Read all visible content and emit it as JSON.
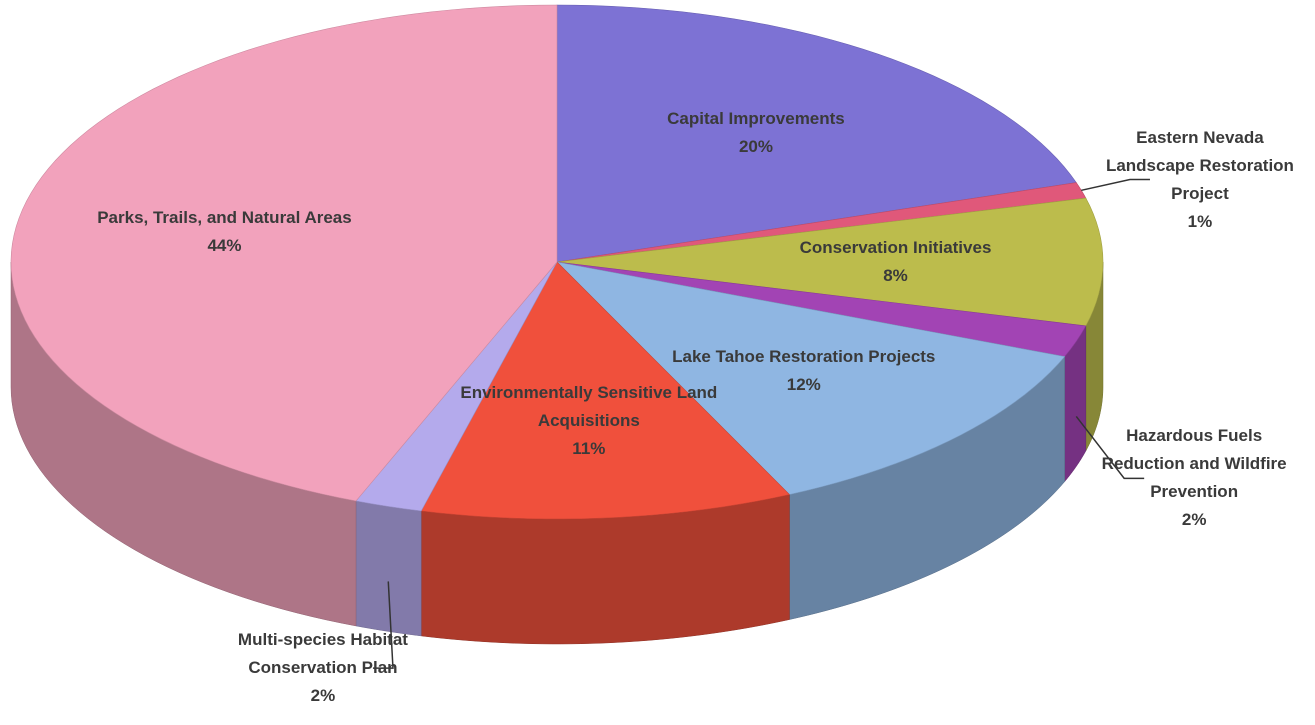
{
  "chart_data": {
    "type": "pie3d",
    "categories": [
      "Capital Improvements",
      "Eastern Nevada Landscape Restoration Project",
      "Conservation Initiatives",
      "Hazardous Fuels Reduction and Wildfire Prevention",
      "Lake Tahoe Restoration Projects",
      "Environmentally Sensitive Land Acquisitions",
      "Multi-species Habitat Conservation Plan",
      "Parks, Trails, and Natural Areas"
    ],
    "values": [
      20,
      1,
      8,
      2,
      12,
      11,
      2,
      44
    ],
    "value_labels": [
      "20%",
      "1%",
      "8%",
      "2%",
      "12%",
      "11%",
      "2%",
      "44%"
    ],
    "colors": [
      "#7d72d4",
      "#e0587a",
      "#bcbc4c",
      "#a244b4",
      "#8fb6e2",
      "#f0503c",
      "#b4aaec",
      "#f2a2bc"
    ]
  }
}
